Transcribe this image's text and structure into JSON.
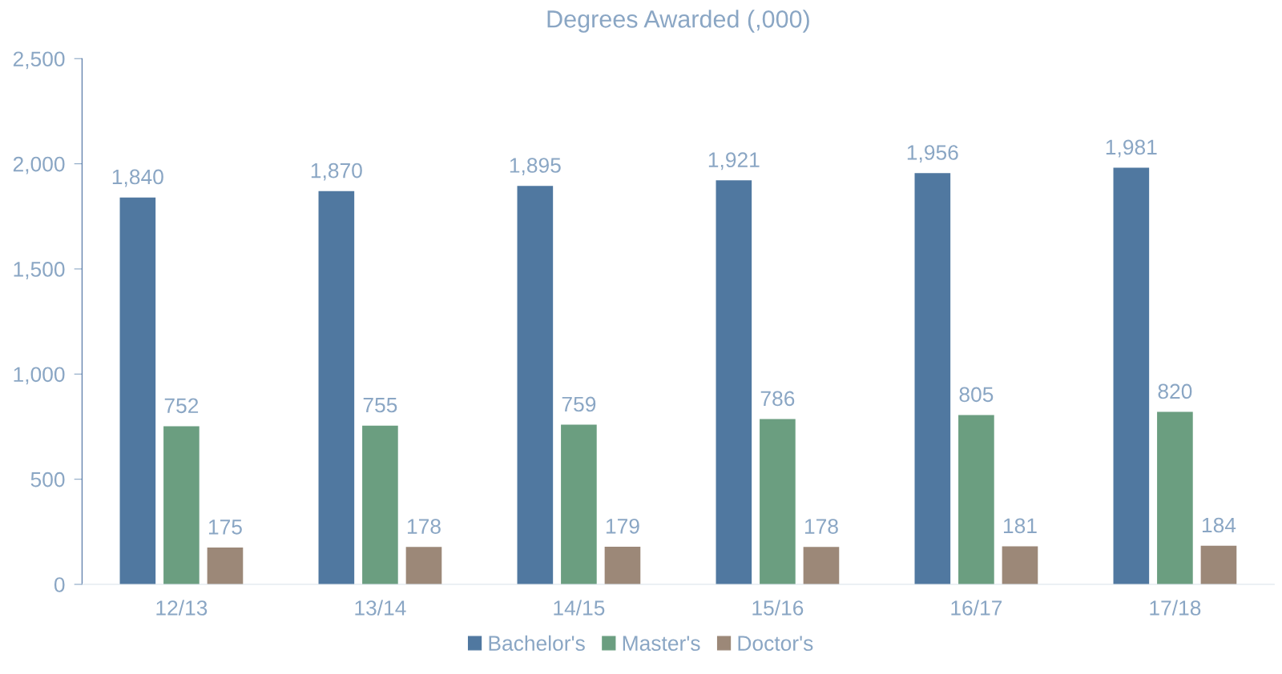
{
  "chart_data": {
    "type": "bar",
    "title": "Degrees Awarded (,000)",
    "categories": [
      "12/13",
      "13/14",
      "14/15",
      "15/16",
      "16/17",
      "17/18"
    ],
    "series": [
      {
        "name": "Bachelor's",
        "color": "#5078a0",
        "values": [
          1840,
          1870,
          1895,
          1921,
          1956,
          1981
        ],
        "value_labels": [
          "1,840",
          "1,870",
          "1,895",
          "1,921",
          "1,956",
          "1,981"
        ]
      },
      {
        "name": "Master's",
        "color": "#6b9e80",
        "values": [
          752,
          755,
          759,
          786,
          805,
          820
        ],
        "value_labels": [
          "752",
          "755",
          "759",
          "786",
          "805",
          "820"
        ]
      },
      {
        "name": "Doctor's",
        "color": "#9c8878",
        "values": [
          175,
          178,
          179,
          178,
          181,
          184
        ],
        "value_labels": [
          "175",
          "178",
          "179",
          "178",
          "181",
          "184"
        ]
      }
    ],
    "ylim": [
      0,
      2500
    ],
    "yticks": [
      {
        "value": 0,
        "label": "0"
      },
      {
        "value": 500,
        "label": "500"
      },
      {
        "value": 1000,
        "label": "1,000"
      },
      {
        "value": 1500,
        "label": "1,500"
      },
      {
        "value": 2000,
        "label": "2,000"
      },
      {
        "value": 2500,
        "label": "2,500"
      }
    ],
    "grid": false,
    "legend": "bottom"
  }
}
